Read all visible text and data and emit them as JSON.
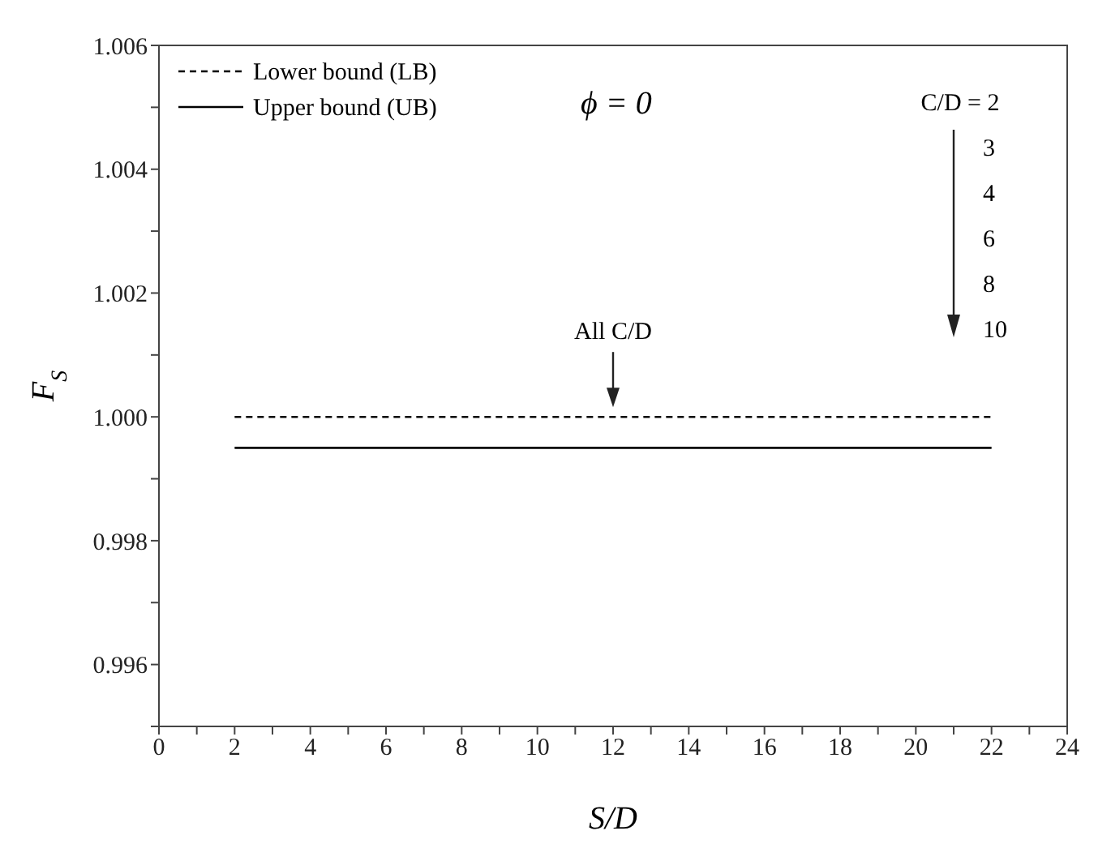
{
  "chart_data": {
    "type": "line",
    "xlabel": "S/D",
    "ylabel": "F$_{S}$",
    "x": [
      2,
      22
    ],
    "series": [
      {
        "name": "Lower bound (LB)",
        "color": "#000000",
        "line_style": "dashed",
        "values": [
          1.0,
          1.0
        ]
      },
      {
        "name": "Upper bound (UB)",
        "color": "#000000",
        "line_style": "solid",
        "values": [
          0.9995,
          0.9995
        ]
      }
    ],
    "xlim": [
      0,
      24
    ],
    "xticks": [
      0,
      {
        "value": 1,
        "label": null
      },
      2,
      {
        "value": 3,
        "label": null
      },
      4,
      {
        "value": 5,
        "label": null
      },
      6,
      {
        "value": 7,
        "label": null
      },
      8,
      {
        "value": 9,
        "label": null
      },
      10,
      {
        "value": 11,
        "label": null
      },
      12,
      {
        "value": 13,
        "label": null
      },
      14,
      {
        "value": 15,
        "label": null
      },
      16,
      {
        "value": 17,
        "label": null
      },
      18,
      {
        "value": 19,
        "label": null
      },
      20,
      {
        "value": 21,
        "label": null
      },
      22,
      {
        "value": 23,
        "label": null
      },
      24
    ],
    "ylim": [
      0.995,
      1.006
    ],
    "yticks": [
      {
        "value": 0.995,
        "label": null
      },
      0.996,
      {
        "value": 0.997,
        "label": null
      },
      0.998,
      {
        "value": 0.999,
        "label": null
      },
      "1.000",
      {
        "value": 1.001,
        "label": null
      },
      1.002,
      {
        "value": 1.003,
        "label": null
      },
      1.004,
      {
        "value": 1.005,
        "label": null
      },
      1.006
    ],
    "annotations": [
      "ϕ = 0",
      {
        "text": "All C/D",
        "x": 12,
        "y": 1.0
      },
      "C/D = 2",
      "3",
      "4",
      "6",
      "8",
      "10"
    ],
    "legend": "top left",
    "marker": "none"
  }
}
